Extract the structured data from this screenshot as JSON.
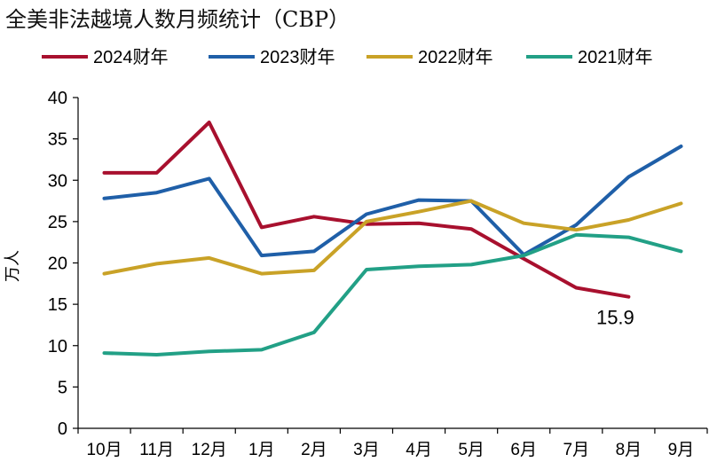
{
  "chart_data": {
    "type": "line",
    "title": "全美非法越境人数月频统计（CBP）",
    "ylabel": "万人",
    "xlabel": "",
    "ylim": [
      0,
      40
    ],
    "yticks": [
      0,
      5,
      10,
      15,
      20,
      25,
      30,
      35,
      40
    ],
    "grid": false,
    "legend": "top",
    "categories": [
      "10月",
      "11月",
      "12月",
      "1月",
      "2月",
      "3月",
      "4月",
      "5月",
      "6月",
      "7月",
      "8月",
      "9月"
    ],
    "series": [
      {
        "name": "2024财年",
        "color": "#A8102E",
        "values": [
          30.9,
          30.9,
          37.0,
          24.3,
          25.6,
          24.7,
          24.8,
          24.1,
          20.5,
          17.0,
          15.9,
          null
        ]
      },
      {
        "name": "2023财年",
        "color": "#1F5FA8",
        "values": [
          27.8,
          28.5,
          30.2,
          20.9,
          21.4,
          25.9,
          27.6,
          27.5,
          21.0,
          24.6,
          30.4,
          34.1
        ]
      },
      {
        "name": "2022财年",
        "color": "#C9A227",
        "values": [
          18.7,
          19.9,
          20.6,
          18.7,
          19.1,
          25.0,
          26.2,
          27.5,
          24.8,
          24.0,
          25.2,
          27.2
        ]
      },
      {
        "name": "2021财年",
        "color": "#22A086",
        "values": [
          9.1,
          8.9,
          9.3,
          9.5,
          11.6,
          19.2,
          19.6,
          19.8,
          20.9,
          23.4,
          23.1,
          21.4
        ]
      }
    ],
    "annotations": [
      {
        "text": "15.9",
        "series": "2024财年",
        "category": "8月"
      }
    ]
  }
}
